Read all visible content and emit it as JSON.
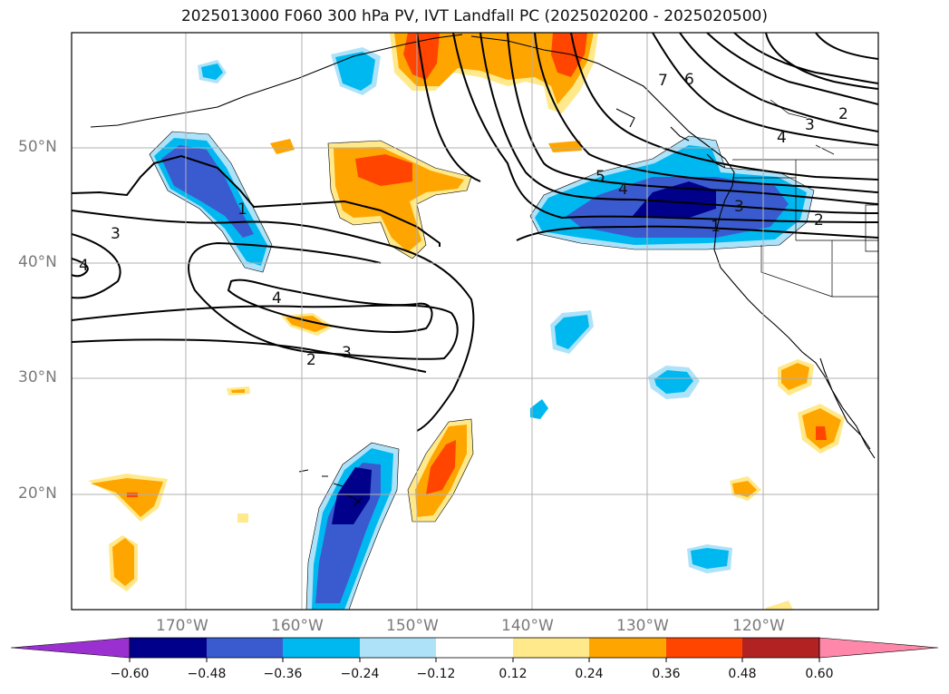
{
  "title": "2025013000 F060 300 hPa PV, IVT Landfall PC (2025020200 - 2025020500)",
  "map": {
    "lat_labels": [
      "50°N",
      "40°N",
      "30°N",
      "20°N"
    ],
    "lon_labels": [
      "170°W",
      "160°W",
      "150°W",
      "140°W",
      "130°W",
      "120°W"
    ],
    "contour_labels": [
      "1",
      "2",
      "3",
      "4",
      "5",
      "6",
      "7"
    ]
  },
  "colorbar": {
    "ticks": [
      "−0.60",
      "−0.48",
      "−0.36",
      "−0.24",
      "−0.12",
      "0.12",
      "0.24",
      "0.36",
      "0.48",
      "0.60"
    ],
    "colors": [
      "#9b30d0",
      "#00008b",
      "#3a5bd0",
      "#00b8f0",
      "#aee2f9",
      "#ffffff",
      "#ffe98a",
      "#ffa500",
      "#ff4500",
      "#b22222",
      "#ff88aa"
    ]
  },
  "fill_colors": {
    "neg_light": "#aee2f9",
    "neg_mid": "#00b8f0",
    "neg_strong": "#3a5bd0",
    "neg_max": "#00008b",
    "pos_light": "#ffe98a",
    "pos_mid": "#ffa500",
    "pos_strong": "#ff4500"
  }
}
